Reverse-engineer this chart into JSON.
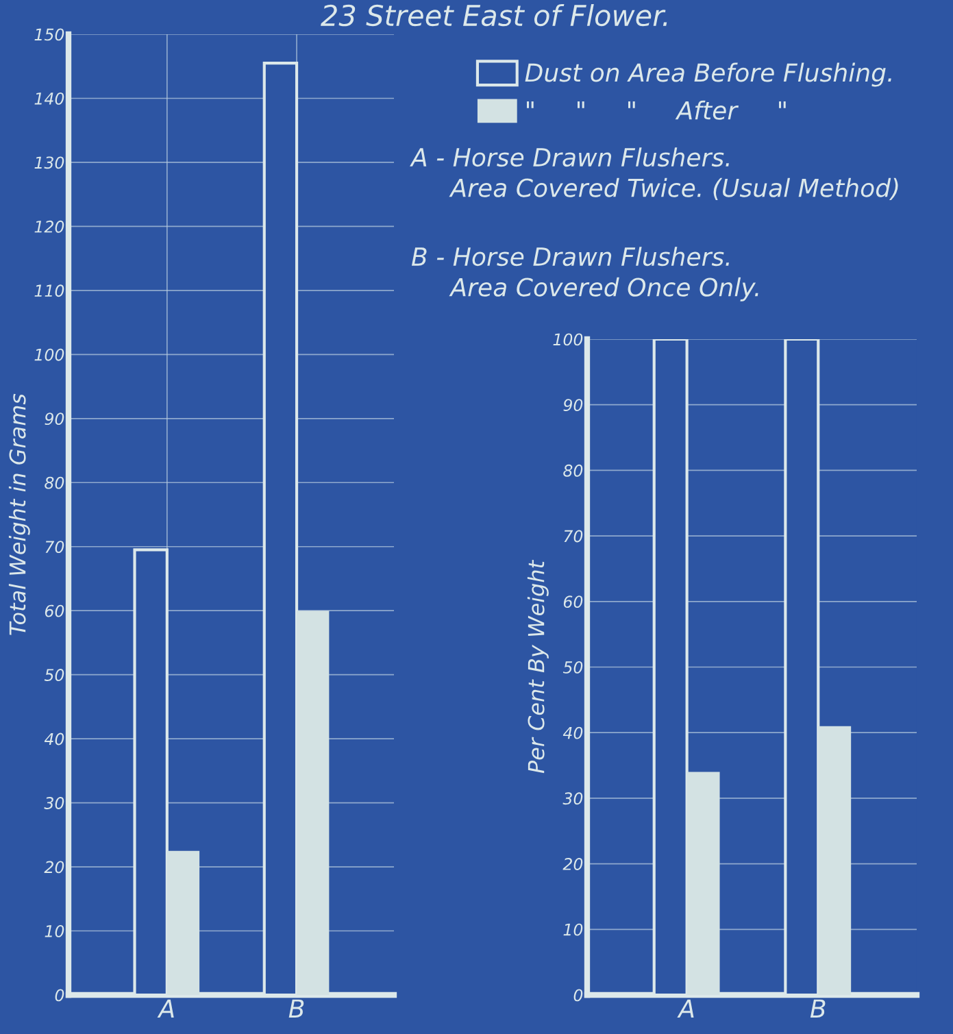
{
  "chart_data": [
    {
      "type": "bar",
      "title": "23 Street East of Flower.",
      "ylabel": "Total Weight in Grams",
      "categories": [
        "A",
        "B"
      ],
      "series": [
        {
          "name": "Dust on Area Before Flushing.",
          "color": "#dce8ea",
          "values": [
            69.5,
            145.5
          ]
        },
        {
          "name": "\"     \"     \"     After     \"",
          "color": "#d3e2e3",
          "values": [
            22.5,
            60
          ]
        }
      ],
      "ylim": [
        0,
        150
      ],
      "yticks": [
        0,
        10,
        20,
        30,
        40,
        50,
        60,
        70,
        80,
        90,
        100,
        110,
        120,
        130,
        140,
        150
      ],
      "grid": true,
      "legend": "top right",
      "annotations": [
        "A - Horse Drawn Flushers.\n     Area Covered Twice. (Usual Method)",
        "B - Horse Drawn Flushers.\n     Area Covered Once Only."
      ]
    },
    {
      "type": "bar",
      "ylabel": "Per Cent By Weight",
      "categories": [
        "A",
        "B"
      ],
      "series": [
        {
          "color": "#dce8ea",
          "values": [
            100,
            100
          ]
        },
        {
          "color": "#d3e2e3",
          "values": [
            34,
            41
          ]
        }
      ],
      "ylim": [
        0,
        100
      ],
      "yticks": [
        0,
        10,
        20,
        30,
        40,
        50,
        60,
        70,
        80,
        90,
        100
      ],
      "grid": true
    }
  ]
}
